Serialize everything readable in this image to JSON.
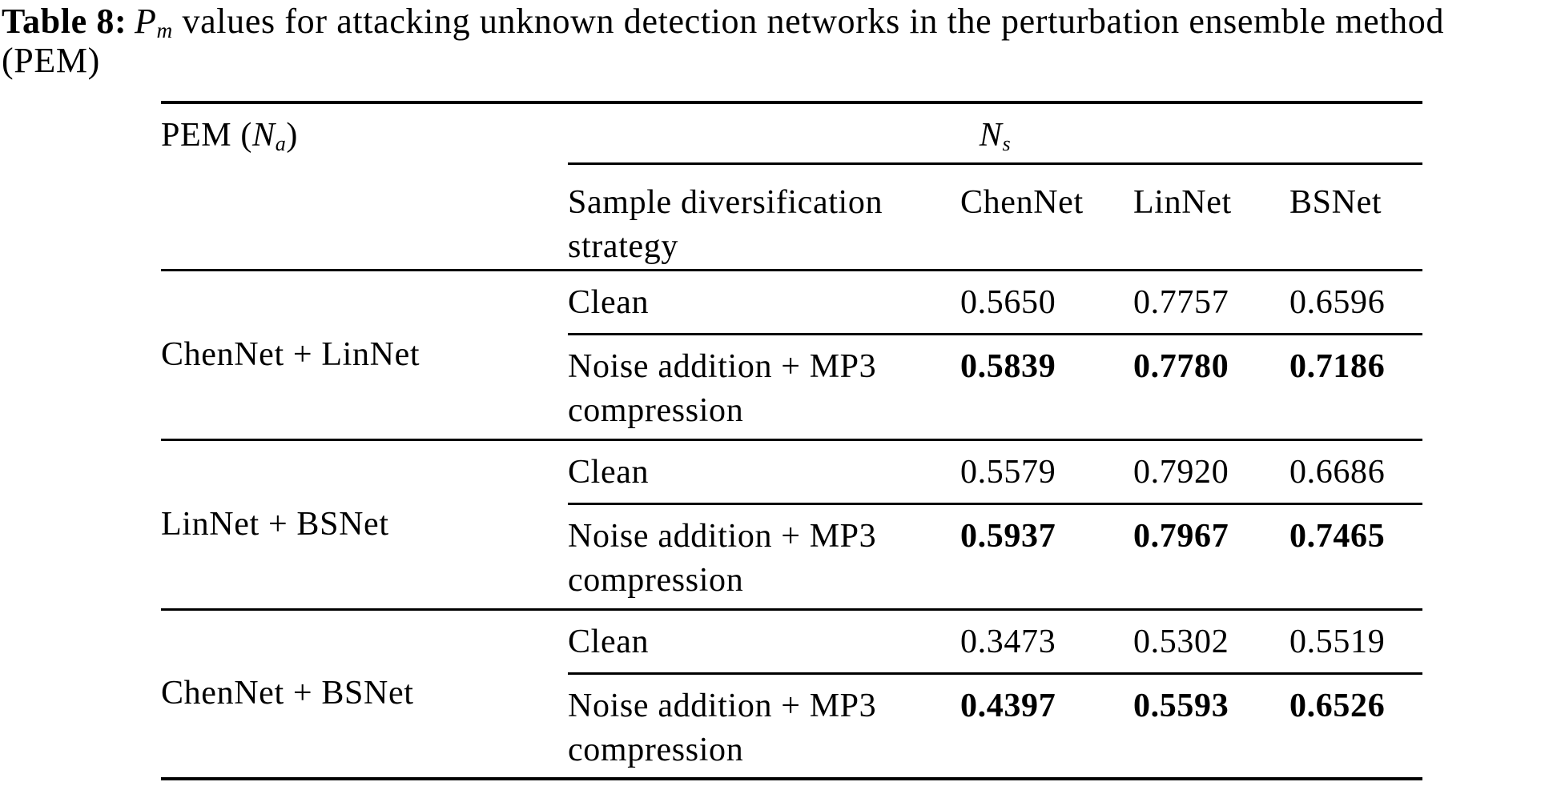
{
  "title": {
    "label": "Table 8:",
    "symbol": "P",
    "symbol_sub": "m",
    "rest": " values for attacking unknown detection networks in the perturbation ensemble method",
    "line2": "(PEM)"
  },
  "table": {
    "col1_header": {
      "pre": "PEM (",
      "var": "N",
      "sub": "a",
      "post": ")"
    },
    "span_header": {
      "var": "N",
      "sub": "s"
    },
    "columns": [
      "Sample diversification strategy",
      "ChenNet",
      "LinNet",
      "BSNet"
    ],
    "groups": [
      {
        "label": "ChenNet + LinNet",
        "rows": [
          {
            "strategy": "Clean",
            "bold": false,
            "values": [
              "0.5650",
              "0.7757",
              "0.6596"
            ]
          },
          {
            "strategy": "Noise addition + MP3 compression",
            "bold": true,
            "values": [
              "0.5839",
              "0.7780",
              "0.7186"
            ]
          }
        ]
      },
      {
        "label": "LinNet + BSNet",
        "rows": [
          {
            "strategy": "Clean",
            "bold": false,
            "values": [
              "0.5579",
              "0.7920",
              "0.6686"
            ]
          },
          {
            "strategy": "Noise addition + MP3 compression",
            "bold": true,
            "values": [
              "0.5937",
              "0.7967",
              "0.7465"
            ]
          }
        ]
      },
      {
        "label": "ChenNet + BSNet",
        "rows": [
          {
            "strategy": "Clean",
            "bold": false,
            "values": [
              "0.3473",
              "0.5302",
              "0.5519"
            ]
          },
          {
            "strategy": "Noise addition + MP3 compression",
            "bold": true,
            "values": [
              "0.4397",
              "0.5593",
              "0.6526"
            ]
          }
        ]
      }
    ]
  }
}
